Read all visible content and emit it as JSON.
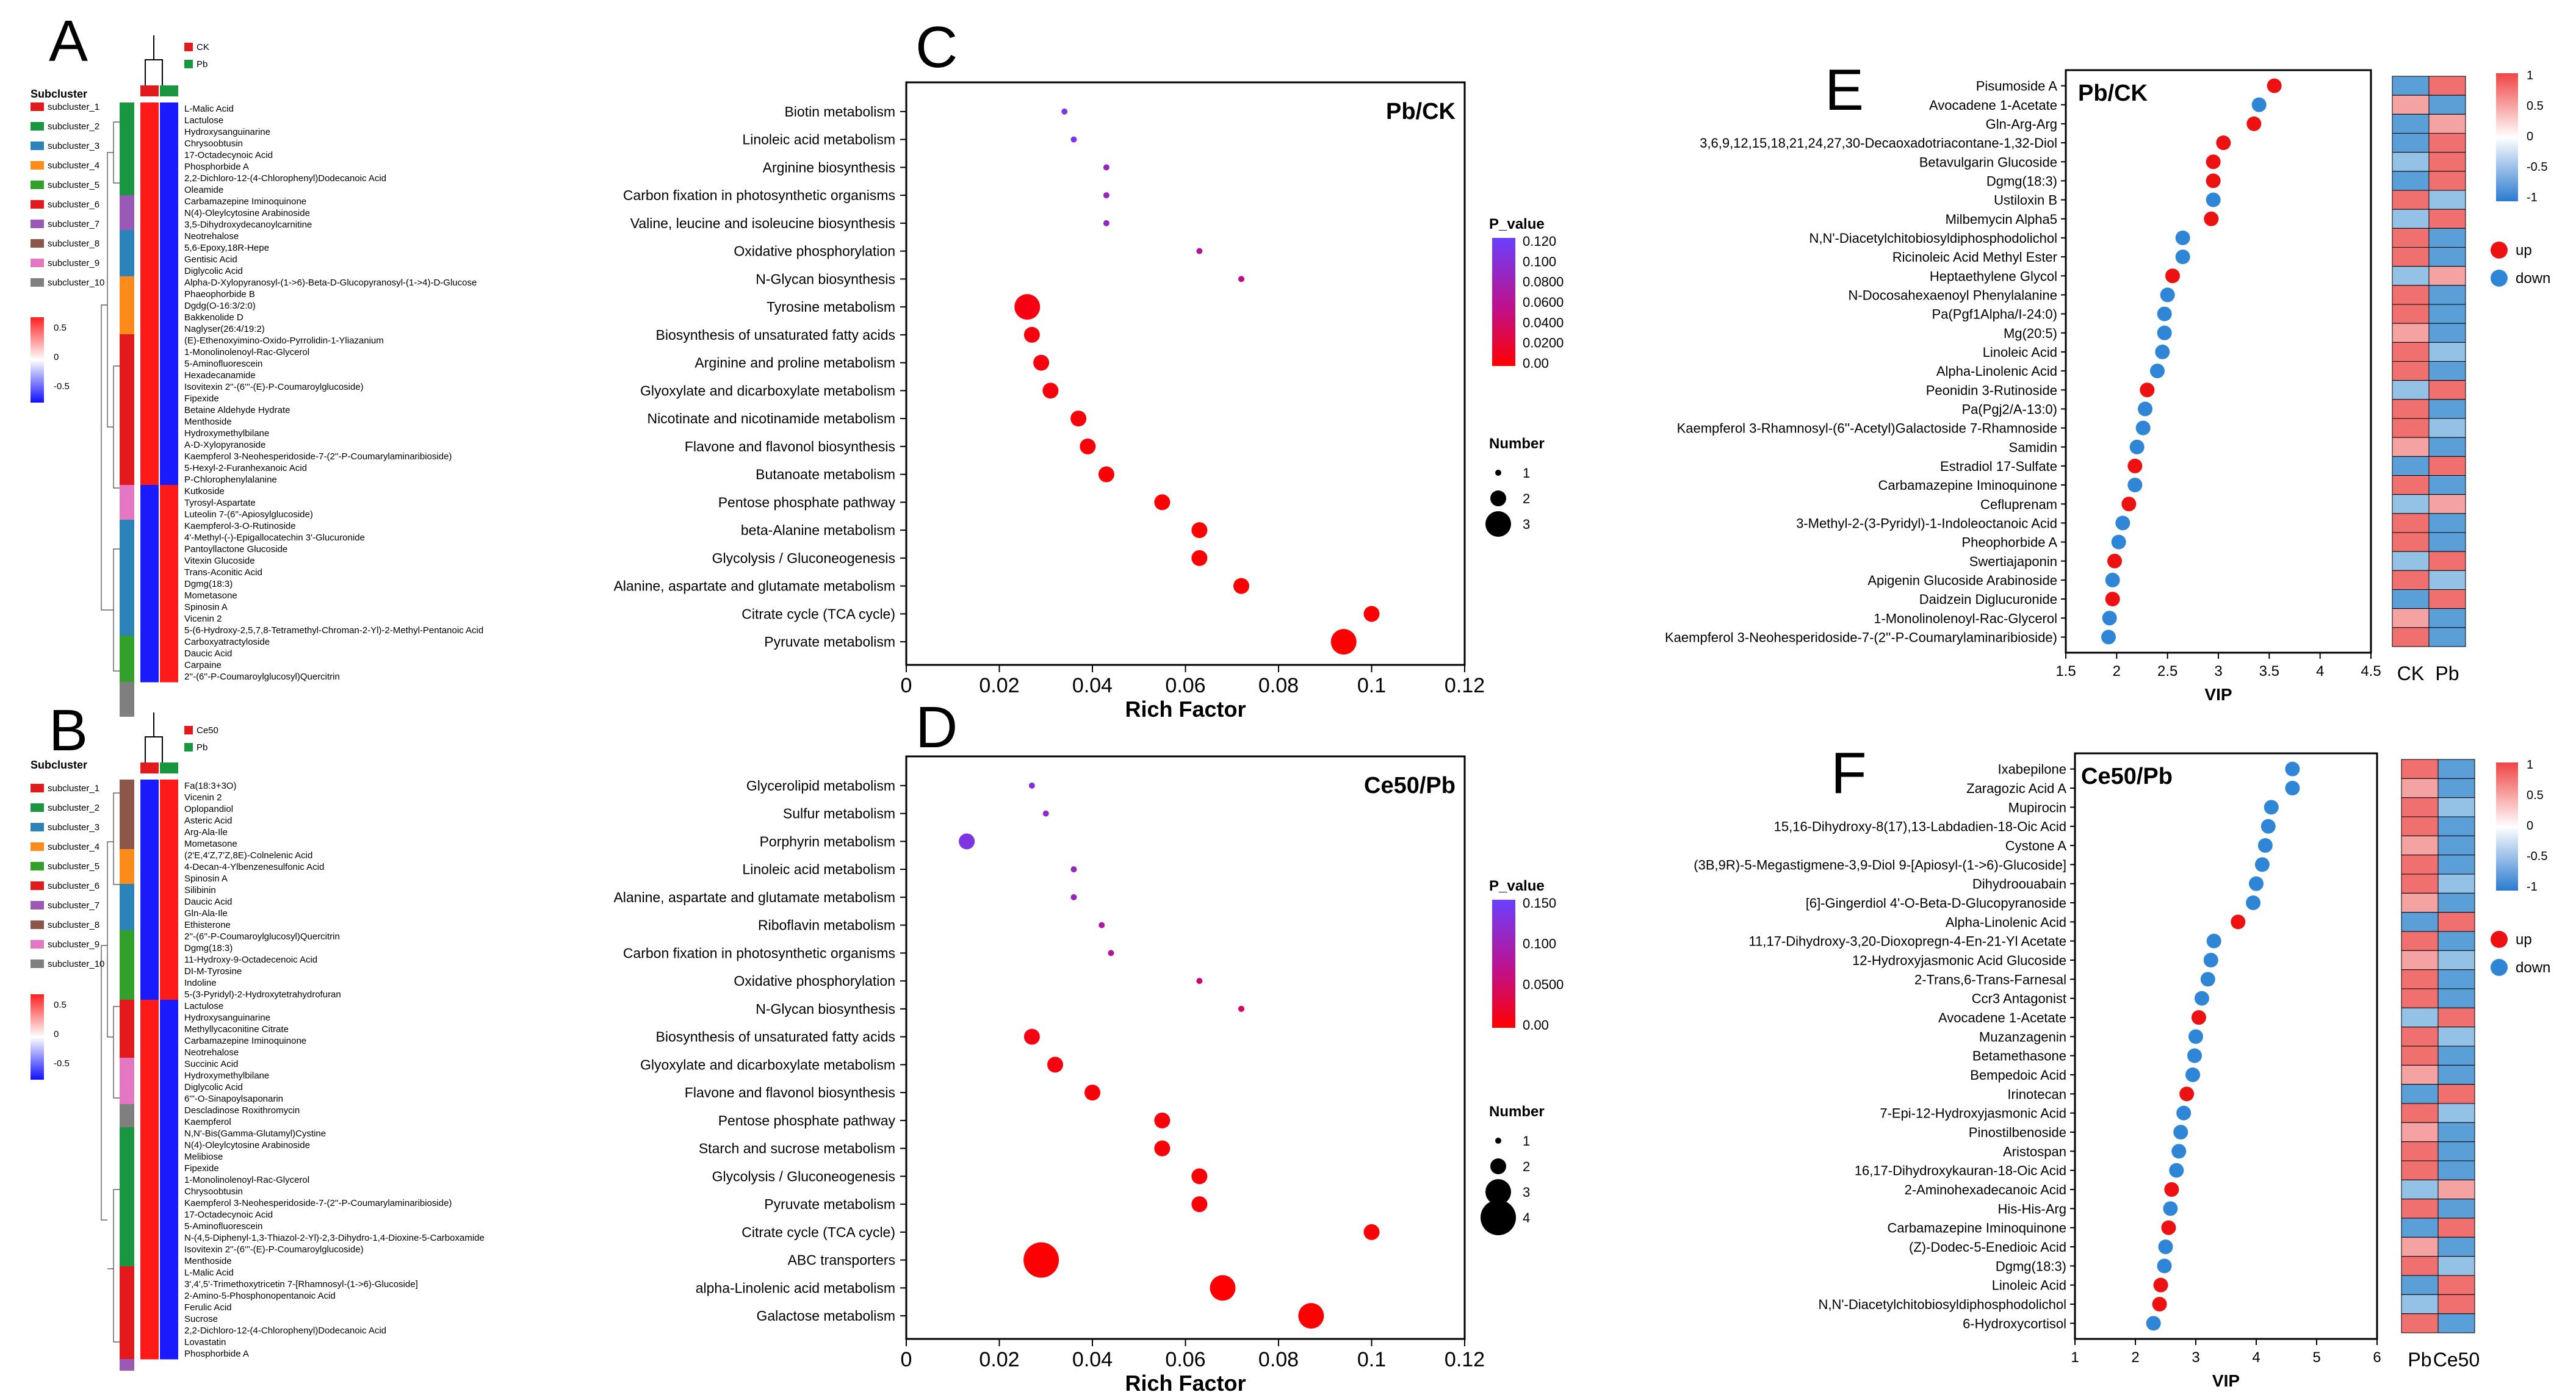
{
  "panels": {
    "A": {
      "letter": "A",
      "legend_title": "Subcluster",
      "groups": [
        "CK",
        "Pb"
      ],
      "subclusters": [
        "subcluster_1",
        "subcluster_2",
        "subcluster_3",
        "subcluster_4",
        "subcluster_5",
        "subcluster_6",
        "subcluster_7",
        "subcluster_8",
        "subcluster_9",
        "subcluster_10"
      ],
      "scale_ticks": [
        "0.5",
        "0",
        "-0.5"
      ],
      "rows": [
        "L-Malic Acid",
        "Lactulose",
        "Hydroxysanguinarine",
        "Chrysoobtusin",
        "17-Octadecynoic Acid",
        "Phosphorbide A",
        "2,2-Dichloro-12-(4-Chlorophenyl)Dodecanoic Acid",
        "Oleamide",
        "Carbamazepine Iminoquinone",
        "N(4)-Oleylcytosine Arabinoside",
        "3,5-Dihydroxydecanoylcarnitine",
        "Neotrehalose",
        "5,6-Epoxy,18R-Hepe",
        "Gentisic Acid",
        "Diglycolic Acid",
        "Alpha-D-Xylopyranosyl-(1->6)-Beta-D-Glucopyranosyl-(1->4)-D-Glucose",
        "Phaeophorbide B",
        "Dgdg(O-16:3/2:0)",
        "Bakkenolide D",
        "Naglyser(26:4/19:2)",
        "(E)-Ethenoxyimino-Oxido-Pyrrolidin-1-Yliazanium",
        "1-Monolinolenoyl-Rac-Glycerol",
        "5-Aminofluorescein",
        "Hexadecanamide",
        "Isovitexin 2''-(6'''-(E)-P-Coumaroylglucoside)",
        "Fipexide",
        "Betaine Aldehyde Hydrate",
        "Menthoside",
        "Hydroxymethylbilane",
        "A-D-Xylopyranoside",
        "Kaempferol 3-Neohesperidoside-7-(2''-P-Coumarylaminaribioside)",
        "5-Hexyl-2-Furanhexanoic Acid",
        "P-Chlorophenylalanine",
        "Kutkoside",
        "Tyrosyl-Aspartate",
        "Luteolin 7-(6''-Apiosylglucoside)",
        "Kaempferol-3-O-Rutinoside",
        "4'-Methyl-(-)-Epigallocatechin 3'-Glucuronide",
        "Pantoyllactone Glucoside",
        "Vitexin Glucoside",
        "Trans-Aconitic Acid",
        "Dgmg(18:3)",
        "Mometasone",
        "Spinosin A",
        "Vicenin 2",
        "5-(6-Hydroxy-2,5,7,8-Tetramethyl-Chroman-2-Yl)-2-Methyl-Pentanoic Acid",
        "Carboxyatractyloside",
        "Daucic Acid",
        "Carpaine",
        "2''-(6''-P-Coumaroylglucosyl)Quercitrin"
      ]
    },
    "B": {
      "letter": "B",
      "legend_title": "Subcluster",
      "groups": [
        "Ce50",
        "Pb"
      ],
      "subclusters": [
        "subcluster_1",
        "subcluster_2",
        "subcluster_3",
        "subcluster_4",
        "subcluster_5",
        "subcluster_6",
        "subcluster_7",
        "subcluster_8",
        "subcluster_9",
        "subcluster_10"
      ],
      "scale_ticks": [
        "0.5",
        "0",
        "-0.5"
      ],
      "rows": [
        "Fa(18:3+3O)",
        "Vicenin 2",
        "Oplopandiol",
        "Asteric Acid",
        "Arg-Ala-Ile",
        "Mometasone",
        "(2'E,4'Z,7'Z,8E)-Colnelenic Acid",
        "4-Decan-4-Ylbenzenesulfonic Acid",
        "Spinosin A",
        "Silibinin",
        "Daucic Acid",
        "Gln-Ala-Ile",
        "Ethisterone",
        "2''-(6''-P-Coumaroylglucosyl)Quercitrin",
        "Dgmg(18:3)",
        "11-Hydroxy-9-Octadecenoic Acid",
        "DI-M-Tyrosine",
        "Indoline",
        "5-(3-Pyridyl)-2-Hydroxytetrahydrofuran",
        "Lactulose",
        "Hydroxysanguinarine",
        "Methyllycaconitine Citrate",
        "Carbamazepine Iminoquinone",
        "Neotrehalose",
        "Succinic Acid",
        "Hydroxymethylbilane",
        "Diglycolic Acid",
        "6'''-O-Sinapoylsaponarin",
        "Descladinose Roxithromycin",
        "Kaempferol",
        "N,N'-Bis(Gamma-Glutamyl)Cystine",
        "N(4)-Oleylcytosine Arabinoside",
        "Melibiose",
        "Fipexide",
        "1-Monolinolenoyl-Rac-Glycerol",
        "Chrysoobtusin",
        "Kaempferol 3-Neohesperidoside-7-(2''-P-Coumarylaminaribioside)",
        "17-Octadecynoic Acid",
        "5-Aminofluorescein",
        "N-(4,5-Diphenyl-1,3-Thiazol-2-Yl)-2,3-Dihydro-1,4-Dioxine-5-Carboxamide",
        "Isovitexin 2''-(6'''-(E)-P-Coumaroylglucoside)",
        "Menthoside",
        "L-Malic Acid",
        "3',4',5'-Trimethoxytricetin 7-[Rhamnosyl-(1->6)-Glucoside]",
        "2-Amino-5-Phosphonopentanoic Acid",
        "Ferulic Acid",
        "Sucrose",
        "2,2-Dichloro-12-(4-Chlorophenyl)Dodecanoic Acid",
        "Lovastatin",
        "Phosphorbide A"
      ]
    },
    "C": {
      "letter": "C",
      "label": "Pb/CK",
      "legend_title": "P_value",
      "pvalue_ticks": [
        "0.120",
        "0.100",
        "0.0800",
        "0.0600",
        "0.0400",
        "0.0200",
        "0.00"
      ],
      "size_title": "Number",
      "size_labels": [
        "1",
        "2",
        "3"
      ]
    },
    "D": {
      "letter": "D",
      "label": "Ce50/Pb",
      "legend_title": "P_value",
      "pvalue_ticks": [
        "0.150",
        "0.100",
        "0.0500",
        "0.00"
      ],
      "size_title": "Number",
      "size_labels": [
        "1",
        "2",
        "3",
        "4"
      ]
    },
    "E": {
      "letter": "E",
      "label": "Pb/CK",
      "heat_cols": [
        "CK",
        "Pb"
      ],
      "scale_ticks": [
        "1",
        "0.5",
        "0",
        "-0.5",
        "-1"
      ],
      "legend": [
        "up",
        "down"
      ]
    },
    "F": {
      "letter": "F",
      "label": "Ce50/Pb",
      "heat_cols": [
        "Pb",
        "Ce50"
      ],
      "scale_ticks": [
        "1",
        "0.5",
        "0",
        "-0.5",
        "-1"
      ],
      "legend": [
        "up",
        "down"
      ]
    }
  },
  "chart_data": [
    {
      "panel": "C",
      "type": "scatter",
      "title": "Pb/CK",
      "xlabel": "Rich Factor",
      "xlim": [
        0,
        0.12
      ],
      "xticks": [
        "0",
        "0.02",
        "0.04",
        "0.06",
        "0.08",
        "0.1",
        "0.12"
      ],
      "pmax": 0.12,
      "pathways": [
        {
          "name": "Biotin metabolism",
          "rich": 0.034,
          "number": 1,
          "p": 0.115
        },
        {
          "name": "Linoleic acid metabolism",
          "rich": 0.036,
          "number": 1,
          "p": 0.11
        },
        {
          "name": "Arginine biosynthesis",
          "rich": 0.043,
          "number": 1,
          "p": 0.095
        },
        {
          "name": "Carbon fixation in photosynthetic organisms",
          "rich": 0.043,
          "number": 1,
          "p": 0.095
        },
        {
          "name": "Valine, leucine and isoleucine biosynthesis",
          "rich": 0.043,
          "number": 1,
          "p": 0.095
        },
        {
          "name": "Oxidative phosphorylation",
          "rich": 0.063,
          "number": 1,
          "p": 0.08
        },
        {
          "name": "N-Glycan biosynthesis",
          "rich": 0.072,
          "number": 1,
          "p": 0.07
        },
        {
          "name": "Tyrosine metabolism",
          "rich": 0.026,
          "number": 3,
          "p": 0.01
        },
        {
          "name": "Biosynthesis of unsaturated fatty acids",
          "rich": 0.027,
          "number": 2,
          "p": 0.008
        },
        {
          "name": "Arginine and proline metabolism",
          "rich": 0.029,
          "number": 2,
          "p": 0.008
        },
        {
          "name": "Glyoxylate and dicarboxylate metabolism",
          "rich": 0.031,
          "number": 2,
          "p": 0.007
        },
        {
          "name": "Nicotinate and nicotinamide metabolism",
          "rich": 0.037,
          "number": 2,
          "p": 0.006
        },
        {
          "name": "Flavone and flavonol biosynthesis",
          "rich": 0.039,
          "number": 2,
          "p": 0.005
        },
        {
          "name": "Butanoate metabolism",
          "rich": 0.043,
          "number": 2,
          "p": 0.004
        },
        {
          "name": "Pentose phosphate pathway",
          "rich": 0.055,
          "number": 2,
          "p": 0.003
        },
        {
          "name": "beta-Alanine metabolism",
          "rich": 0.063,
          "number": 2,
          "p": 0.002
        },
        {
          "name": "Glycolysis / Gluconeogenesis",
          "rich": 0.063,
          "number": 2,
          "p": 0.002
        },
        {
          "name": "Alanine, aspartate and glutamate metabolism",
          "rich": 0.072,
          "number": 2,
          "p": 0.002
        },
        {
          "name": "Citrate cycle (TCA cycle)",
          "rich": 0.1,
          "number": 2,
          "p": 0.001
        },
        {
          "name": "Pyruvate metabolism",
          "rich": 0.094,
          "number": 3,
          "p": 0.001
        }
      ]
    },
    {
      "panel": "D",
      "type": "scatter",
      "title": "Ce50/Pb",
      "xlabel": "Rich Factor",
      "xlim": [
        0,
        0.12
      ],
      "xticks": [
        "0",
        "0.02",
        "0.04",
        "0.06",
        "0.08",
        "0.1",
        "0.12"
      ],
      "pmax": 0.16,
      "pathways": [
        {
          "name": "Glycerolipid metabolism",
          "rich": 0.027,
          "number": 1,
          "p": 0.14
        },
        {
          "name": "Sulfur metabolism",
          "rich": 0.03,
          "number": 1,
          "p": 0.135
        },
        {
          "name": "Porphyrin metabolism",
          "rich": 0.013,
          "number": 2,
          "p": 0.145
        },
        {
          "name": "Linoleic acid metabolism",
          "rich": 0.036,
          "number": 1,
          "p": 0.125
        },
        {
          "name": "Alanine, aspartate and glutamate metabolism",
          "rich": 0.036,
          "number": 1,
          "p": 0.125
        },
        {
          "name": "Riboflavin metabolism",
          "rich": 0.042,
          "number": 1,
          "p": 0.11
        },
        {
          "name": "Carbon fixation in photosynthetic organisms",
          "rich": 0.044,
          "number": 1,
          "p": 0.105
        },
        {
          "name": "Oxidative phosphorylation",
          "rich": 0.063,
          "number": 1,
          "p": 0.085
        },
        {
          "name": "N-Glycan biosynthesis",
          "rich": 0.072,
          "number": 1,
          "p": 0.075
        },
        {
          "name": "Biosynthesis of unsaturated fatty acids",
          "rich": 0.027,
          "number": 2,
          "p": 0.015
        },
        {
          "name": "Glyoxylate and dicarboxylate metabolism",
          "rich": 0.032,
          "number": 2,
          "p": 0.012
        },
        {
          "name": "Flavone and flavonol biosynthesis",
          "rich": 0.04,
          "number": 2,
          "p": 0.01
        },
        {
          "name": "Pentose phosphate pathway",
          "rich": 0.055,
          "number": 2,
          "p": 0.008
        },
        {
          "name": "Starch and sucrose metabolism",
          "rich": 0.055,
          "number": 2,
          "p": 0.008
        },
        {
          "name": "Glycolysis / Gluconeogenesis",
          "rich": 0.063,
          "number": 2,
          "p": 0.006
        },
        {
          "name": "Pyruvate metabolism",
          "rich": 0.063,
          "number": 2,
          "p": 0.006
        },
        {
          "name": "Citrate cycle (TCA cycle)",
          "rich": 0.1,
          "number": 2,
          "p": 0.005
        },
        {
          "name": "ABC transporters",
          "rich": 0.029,
          "number": 4,
          "p": 0.002
        },
        {
          "name": "alpha-Linolenic acid metabolism",
          "rich": 0.068,
          "number": 3,
          "p": 0.002
        },
        {
          "name": "Galactose metabolism",
          "rich": 0.087,
          "number": 3,
          "p": 0.001
        }
      ]
    },
    {
      "panel": "E",
      "type": "scatter",
      "title": "Pb/CK",
      "xlabel": "VIP",
      "xlim": [
        1.5,
        4.5
      ],
      "xticks": [
        "1.5",
        "2",
        "2.5",
        "3",
        "3.5",
        "4",
        "4.5"
      ],
      "items": [
        {
          "name": "Pisumoside A",
          "vip": 3.55,
          "dir": "up"
        },
        {
          "name": "Avocadene 1-Acetate",
          "vip": 3.4,
          "dir": "down"
        },
        {
          "name": "Gln-Arg-Arg",
          "vip": 3.35,
          "dir": "up"
        },
        {
          "name": "3,6,9,12,15,18,21,24,27,30-Decaoxadotriacontane-1,32-Diol",
          "vip": 3.05,
          "dir": "up"
        },
        {
          "name": "Betavulgarin Glucoside",
          "vip": 2.95,
          "dir": "up"
        },
        {
          "name": "Dgmg(18:3)",
          "vip": 2.95,
          "dir": "up"
        },
        {
          "name": "Ustiloxin B",
          "vip": 2.95,
          "dir": "down"
        },
        {
          "name": "Milbemycin Alpha5",
          "vip": 2.93,
          "dir": "up"
        },
        {
          "name": "N,N'-Diacetylchitobiosyldiphosphodolichol",
          "vip": 2.65,
          "dir": "down"
        },
        {
          "name": "Ricinoleic Acid Methyl Ester",
          "vip": 2.65,
          "dir": "down"
        },
        {
          "name": "Heptaethylene Glycol",
          "vip": 2.55,
          "dir": "up"
        },
        {
          "name": "N-Docosahexaenoyl Phenylalanine",
          "vip": 2.5,
          "dir": "down"
        },
        {
          "name": "Pa(Pgf1Alpha/I-24:0)",
          "vip": 2.47,
          "dir": "down"
        },
        {
          "name": "Mg(20:5)",
          "vip": 2.47,
          "dir": "down"
        },
        {
          "name": "Linoleic Acid",
          "vip": 2.45,
          "dir": "down"
        },
        {
          "name": "Alpha-Linolenic Acid",
          "vip": 2.4,
          "dir": "down"
        },
        {
          "name": "Peonidin 3-Rutinoside",
          "vip": 2.3,
          "dir": "up"
        },
        {
          "name": "Pa(Pgj2/A-13:0)",
          "vip": 2.28,
          "dir": "down"
        },
        {
          "name": "Kaempferol 3-Rhamnosyl-(6''-Acetyl)Galactoside 7-Rhamnoside",
          "vip": 2.26,
          "dir": "down"
        },
        {
          "name": "Samidin",
          "vip": 2.2,
          "dir": "down"
        },
        {
          "name": "Estradiol 17-Sulfate",
          "vip": 2.18,
          "dir": "up"
        },
        {
          "name": "Carbamazepine Iminoquinone",
          "vip": 2.18,
          "dir": "down"
        },
        {
          "name": "Cefluprenam",
          "vip": 2.12,
          "dir": "up"
        },
        {
          "name": "3-Methyl-2-(3-Pyridyl)-1-Indoleoctanoic Acid",
          "vip": 2.06,
          "dir": "down"
        },
        {
          "name": "Pheophorbide A",
          "vip": 2.02,
          "dir": "down"
        },
        {
          "name": "Swertiajaponin",
          "vip": 1.98,
          "dir": "up"
        },
        {
          "name": "Apigenin Glucoside Arabinoside",
          "vip": 1.96,
          "dir": "down"
        },
        {
          "name": "Daidzein Diglucuronide",
          "vip": 1.96,
          "dir": "up"
        },
        {
          "name": "1-Monolinolenoyl-Rac-Glycerol",
          "vip": 1.93,
          "dir": "down"
        },
        {
          "name": "Kaempferol 3-Neohesperidoside-7-(2''-P-Coumarylaminaribioside)",
          "vip": 1.92,
          "dir": "down"
        }
      ]
    },
    {
      "panel": "F",
      "type": "scatter",
      "title": "Ce50/Pb",
      "xlabel": "VIP",
      "xlim": [
        1,
        6
      ],
      "xticks": [
        "1",
        "2",
        "3",
        "4",
        "5",
        "6"
      ],
      "items": [
        {
          "name": "Ixabepilone",
          "vip": 4.6,
          "dir": "down"
        },
        {
          "name": "Zaragozic Acid A",
          "vip": 4.6,
          "dir": "down"
        },
        {
          "name": "Mupirocin",
          "vip": 4.25,
          "dir": "down"
        },
        {
          "name": "15,16-Dihydroxy-8(17),13-Labdadien-18-Oic Acid",
          "vip": 4.2,
          "dir": "down"
        },
        {
          "name": "Cystone A",
          "vip": 4.15,
          "dir": "down"
        },
        {
          "name": "(3B,9R)-5-Megastigmene-3,9-Diol 9-[Apiosyl-(1->6)-Glucoside]",
          "vip": 4.1,
          "dir": "down"
        },
        {
          "name": "Dihydroouabain",
          "vip": 4.0,
          "dir": "down"
        },
        {
          "name": "[6]-Gingerdiol 4'-O-Beta-D-Glucopyranoside",
          "vip": 3.95,
          "dir": "down"
        },
        {
          "name": "Alpha-Linolenic Acid",
          "vip": 3.7,
          "dir": "up"
        },
        {
          "name": "11,17-Dihydroxy-3,20-Dioxopregn-4-En-21-Yl Acetate",
          "vip": 3.3,
          "dir": "down"
        },
        {
          "name": "12-Hydroxyjasmonic Acid Glucoside",
          "vip": 3.25,
          "dir": "down"
        },
        {
          "name": "2-Trans,6-Trans-Farnesal",
          "vip": 3.2,
          "dir": "down"
        },
        {
          "name": "Ccr3 Antagonist",
          "vip": 3.1,
          "dir": "down"
        },
        {
          "name": "Avocadene 1-Acetate",
          "vip": 3.05,
          "dir": "up"
        },
        {
          "name": "Muzanzagenin",
          "vip": 3.0,
          "dir": "down"
        },
        {
          "name": "Betamethasone",
          "vip": 2.98,
          "dir": "down"
        },
        {
          "name": "Bempedoic Acid",
          "vip": 2.95,
          "dir": "down"
        },
        {
          "name": "Irinotecan",
          "vip": 2.85,
          "dir": "up"
        },
        {
          "name": "7-Epi-12-Hydroxyjasmonic Acid",
          "vip": 2.8,
          "dir": "down"
        },
        {
          "name": "Pinostilbenoside",
          "vip": 2.75,
          "dir": "down"
        },
        {
          "name": "Aristospan",
          "vip": 2.72,
          "dir": "down"
        },
        {
          "name": "16,17-Dihydroxykauran-18-Oic Acid",
          "vip": 2.68,
          "dir": "down"
        },
        {
          "name": "2-Aminohexadecanoic Acid",
          "vip": 2.6,
          "dir": "up"
        },
        {
          "name": "His-His-Arg",
          "vip": 2.58,
          "dir": "down"
        },
        {
          "name": "Carbamazepine Iminoquinone",
          "vip": 2.55,
          "dir": "up"
        },
        {
          "name": "(Z)-Dodec-5-Enedioic Acid",
          "vip": 2.5,
          "dir": "down"
        },
        {
          "name": "Dgmg(18:3)",
          "vip": 2.48,
          "dir": "down"
        },
        {
          "name": "Linoleic Acid",
          "vip": 2.42,
          "dir": "up"
        },
        {
          "name": "N,N'-Diacetylchitobiosyldiphosphodolichol",
          "vip": 2.4,
          "dir": "up"
        },
        {
          "name": "6-Hydroxycortisol",
          "vip": 2.3,
          "dir": "down"
        }
      ]
    }
  ]
}
